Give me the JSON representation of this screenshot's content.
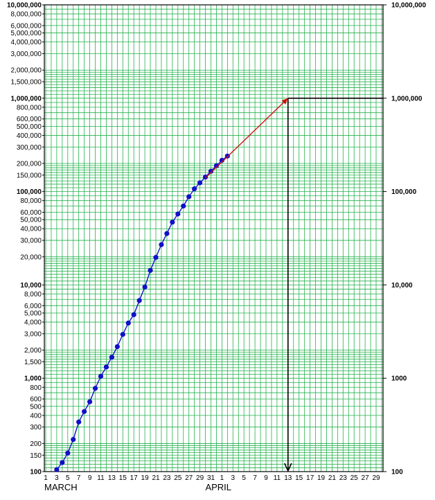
{
  "chart_data": {
    "type": "line",
    "title": "",
    "xlabel": "",
    "ylabel": "",
    "yscale": "log",
    "ylim": [
      100,
      10000000
    ],
    "grid": true,
    "x_tick_labels": [
      "1",
      "3",
      "5",
      "7",
      "9",
      "11",
      "13",
      "15",
      "17",
      "19",
      "21",
      "23",
      "25",
      "27",
      "29",
      "31",
      "1",
      "3",
      "5",
      "7",
      "9",
      "11",
      "13",
      "15",
      "17",
      "19",
      "21",
      "23",
      "25",
      "27",
      "29"
    ],
    "month_labels": [
      "MARCH",
      "APRIL"
    ],
    "y_tick_labels_left": [
      {
        "value": 100,
        "label": "100",
        "major": true
      },
      {
        "value": 150,
        "label": "150"
      },
      {
        "value": 200,
        "label": "200"
      },
      {
        "value": 300,
        "label": "300"
      },
      {
        "value": 400,
        "label": "400"
      },
      {
        "value": 500,
        "label": "500"
      },
      {
        "value": 600,
        "label": "600"
      },
      {
        "value": 800,
        "label": "800"
      },
      {
        "value": 1000,
        "label": "1,000",
        "major": true
      },
      {
        "value": 1500,
        "label": "1,500"
      },
      {
        "value": 2000,
        "label": "2,000"
      },
      {
        "value": 3000,
        "label": "3,000"
      },
      {
        "value": 4000,
        "label": "4,000"
      },
      {
        "value": 5000,
        "label": "5,000"
      },
      {
        "value": 6000,
        "label": "6,000"
      },
      {
        "value": 8000,
        "label": "8,000"
      },
      {
        "value": 10000,
        "label": "10,000",
        "major": true
      },
      {
        "value": 20000,
        "label": "20,000"
      },
      {
        "value": 30000,
        "label": "30,000"
      },
      {
        "value": 40000,
        "label": "40,000"
      },
      {
        "value": 50000,
        "label": "50,000"
      },
      {
        "value": 60000,
        "label": "60,000"
      },
      {
        "value": 80000,
        "label": "80,000"
      },
      {
        "value": 100000,
        "label": "100,000",
        "major": true
      },
      {
        "value": 150000,
        "label": "150,000"
      },
      {
        "value": 200000,
        "label": "200,000"
      },
      {
        "value": 300000,
        "label": "300,000"
      },
      {
        "value": 400000,
        "label": "400,000"
      },
      {
        "value": 500000,
        "label": "500,000"
      },
      {
        "value": 600000,
        "label": "600,000"
      },
      {
        "value": 800000,
        "label": "800,000"
      },
      {
        "value": 1000000,
        "label": "1,000,000",
        "major": true
      },
      {
        "value": 1500000,
        "label": "1,500,000"
      },
      {
        "value": 2000000,
        "label": "2,000,000"
      },
      {
        "value": 3000000,
        "label": "3,000,000"
      },
      {
        "value": 4000000,
        "label": "4,000,000"
      },
      {
        "value": 5000000,
        "label": "5,000,000"
      },
      {
        "value": 6000000,
        "label": "6,000,000"
      },
      {
        "value": 8000000,
        "label": "8,000,000"
      },
      {
        "value": 10000000,
        "label": "10,000,000",
        "major": true
      }
    ],
    "y_tick_labels_right": [
      {
        "value": 100,
        "label": "100"
      },
      {
        "value": 1000,
        "label": "1000"
      },
      {
        "value": 10000,
        "label": "10,000"
      },
      {
        "value": 100000,
        "label": "100,000"
      },
      {
        "value": 1000000,
        "label": "1,000,000"
      },
      {
        "value": 10000000,
        "label": "10,000,000"
      }
    ],
    "series": [
      {
        "color": "#1010c8",
        "points": [
          {
            "date": "Mar 3",
            "value": 105
          },
          {
            "date": "Mar 4",
            "value": 125
          },
          {
            "date": "Mar 5",
            "value": 158
          },
          {
            "date": "Mar 6",
            "value": 221
          },
          {
            "date": "Mar 7",
            "value": 340
          },
          {
            "date": "Mar 8",
            "value": 440
          },
          {
            "date": "Mar 9",
            "value": 560
          },
          {
            "date": "Mar 10",
            "value": 780
          },
          {
            "date": "Mar 11",
            "value": 1050
          },
          {
            "date": "Mar 12",
            "value": 1320
          },
          {
            "date": "Mar 13",
            "value": 1680
          },
          {
            "date": "Mar 14",
            "value": 2180
          },
          {
            "date": "Mar 15",
            "value": 2950
          },
          {
            "date": "Mar 16",
            "value": 3900
          },
          {
            "date": "Mar 17",
            "value": 4800
          },
          {
            "date": "Mar 18",
            "value": 6800
          },
          {
            "date": "Mar 19",
            "value": 9500
          },
          {
            "date": "Mar 20",
            "value": 14300
          },
          {
            "date": "Mar 21",
            "value": 19700
          },
          {
            "date": "Mar 22",
            "value": 27000
          },
          {
            "date": "Mar 23",
            "value": 35500
          },
          {
            "date": "Mar 24",
            "value": 47000
          },
          {
            "date": "Mar 25",
            "value": 57500
          },
          {
            "date": "Mar 26",
            "value": 70000
          },
          {
            "date": "Mar 27",
            "value": 88000
          },
          {
            "date": "Mar 28",
            "value": 107000
          },
          {
            "date": "Mar 29",
            "value": 124000
          },
          {
            "date": "Mar 30",
            "value": 143000
          },
          {
            "date": "Mar 31",
            "value": 165000
          },
          {
            "date": "Apr 1",
            "value": 189000
          },
          {
            "date": "Apr 2",
            "value": 216000
          },
          {
            "date": "Apr 3",
            "value": 240000
          }
        ]
      }
    ],
    "projection": {
      "color": "#d01010",
      "from": {
        "date": "Mar 30",
        "value": 140000
      },
      "to": {
        "date": "Apr 14",
        "value": 1000000
      }
    },
    "guide_lines": {
      "color": "#000000",
      "horizontal_value": 1000000,
      "vertical_date": "Apr 14"
    }
  }
}
